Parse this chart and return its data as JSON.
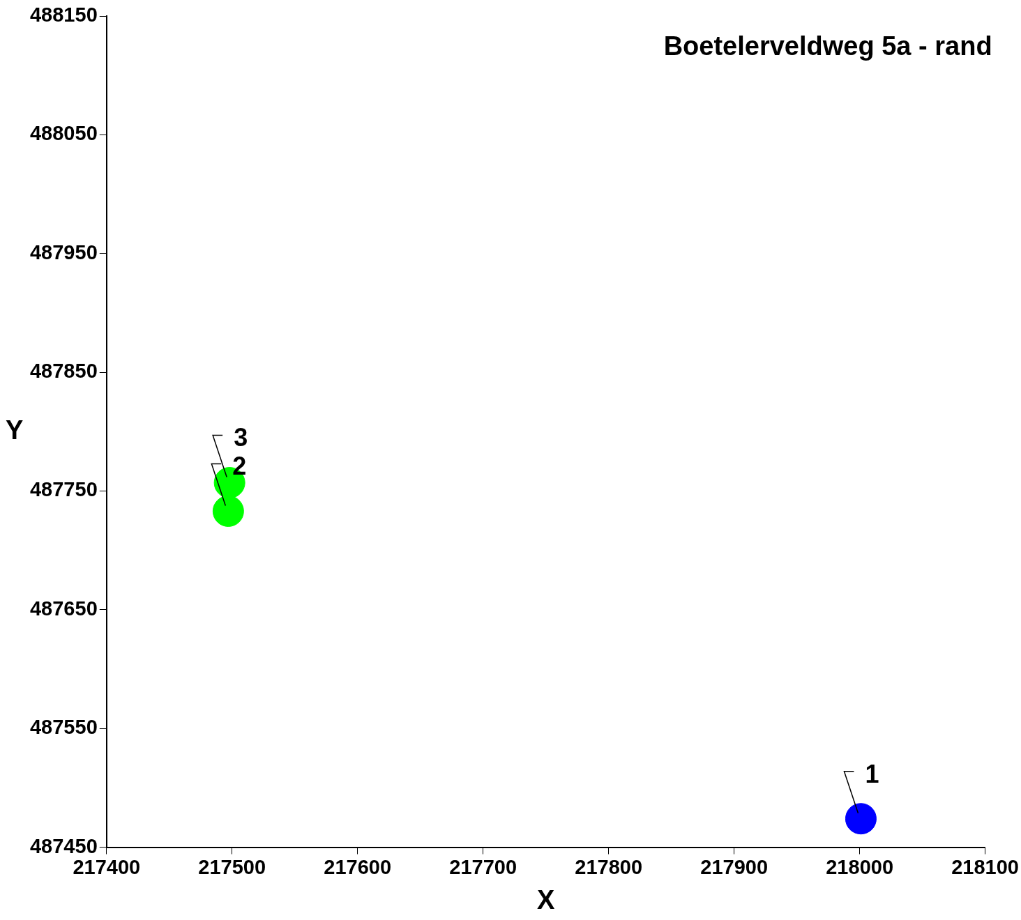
{
  "chart_data": {
    "type": "scatter",
    "title": "Boetelerveldweg 5a - rand",
    "xlabel": "X",
    "ylabel": "Y",
    "series": [
      {
        "color": "#00ff00",
        "x": [
          217498,
          217497
        ],
        "values": [
          487757,
          487733
        ]
      },
      {
        "color": "#0000ff",
        "x": [
          218001
        ],
        "values": [
          487474
        ]
      }
    ],
    "xlim": [
      217400,
      218100
    ],
    "xticks": [
      217400,
      217500,
      217600,
      217700,
      217800,
      217900,
      218000,
      218100
    ],
    "ylim": [
      487450,
      488150
    ],
    "yticks": [
      487450,
      487550,
      487650,
      487750,
      487850,
      487950,
      488050,
      488150
    ],
    "annotations": [
      {
        "text": "3",
        "x": 217498,
        "y": 487757
      },
      {
        "text": "2",
        "x": 217497,
        "y": 487733
      },
      {
        "text": "1",
        "x": 218001,
        "y": 487474
      }
    ],
    "grid": false,
    "legend": false,
    "marker": "circle"
  }
}
